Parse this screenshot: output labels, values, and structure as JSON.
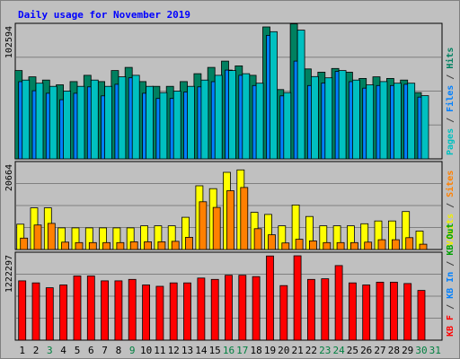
{
  "chart_data": {
    "type": "bar",
    "title": "Daily usage for November 2019",
    "categories": [
      "1",
      "2",
      "3",
      "4",
      "5",
      "6",
      "7",
      "8",
      "9",
      "10",
      "11",
      "12",
      "13",
      "14",
      "15",
      "16",
      "17",
      "18",
      "19",
      "20",
      "21",
      "22",
      "23",
      "24",
      "25",
      "26",
      "27",
      "28",
      "29",
      "30",
      "31"
    ],
    "category_colors": {
      "1": "#000000",
      "2": "#000000",
      "3": "#008040",
      "4": "#000000",
      "5": "#000000",
      "6": "#000000",
      "7": "#000000",
      "8": "#000000",
      "9": "#008040",
      "10": "#000000",
      "11": "#000000",
      "12": "#000000",
      "13": "#000000",
      "14": "#000000",
      "15": "#000000",
      "16": "#008040",
      "17": "#008040",
      "18": "#000000",
      "19": "#000000",
      "20": "#000000",
      "21": "#000000",
      "22": "#000000",
      "23": "#008040",
      "24": "#008040",
      "25": "#000000",
      "26": "#000000",
      "27": "#000000",
      "28": "#000000",
      "29": "#000000",
      "30": "#008040",
      "31": "#008040"
    },
    "panels": [
      {
        "max_label": "102594",
        "ymax": 102594,
        "legend": [
          {
            "text": "Pages",
            "color": "#00c0c0"
          },
          {
            "text": " / ",
            "color": "#404040"
          },
          {
            "text": "Files",
            "color": "#0080ff"
          },
          {
            "text": " / ",
            "color": "#404040"
          },
          {
            "text": "Hits",
            "color": "#008060"
          }
        ],
        "series": [
          {
            "name": "Hits",
            "color": "#008060",
            "values": [
              68700,
              63800,
              61300,
              57600,
              60100,
              65000,
              60100,
              68700,
              71100,
              60100,
              56400,
              56400,
              60100,
              66200,
              71100,
              76000,
              72300,
              65000,
              102600,
              53900,
              105000,
              69900,
              67400,
              70300,
              67400,
              62500,
              63800,
              62500,
              61300,
              51500,
              0
            ]
          },
          {
            "name": "Files",
            "color": "#0080ff",
            "values": [
              60000,
              53000,
              51000,
              46000,
              51000,
              56000,
              49000,
              58000,
              63000,
              51000,
              47000,
              47000,
              52000,
              56000,
              60000,
              69000,
              65000,
              57000,
              96000,
              49000,
              76000,
              57000,
              59000,
              68000,
              60000,
              55000,
              57000,
              57000,
              58000,
              48000,
              0
            ]
          },
          {
            "name": "Pages",
            "color": "#00c0c0",
            "values": [
              61300,
              58800,
              56400,
              52700,
              56400,
              61300,
              56400,
              63800,
              65000,
              56400,
              51500,
              52700,
              56400,
              61300,
              65000,
              68700,
              66200,
              58800,
              98900,
              51500,
              100100,
              64000,
              63000,
              68700,
              61300,
              57600,
              60100,
              58800,
              58800,
              49100,
              0
            ]
          }
        ]
      },
      {
        "max_label": "20664",
        "ymax": 20664,
        "legend": [
          {
            "text": "Visits",
            "color": "#f0f000"
          },
          {
            "text": " / ",
            "color": "#404040"
          },
          {
            "text": "Sites",
            "color": "#ff8000"
          }
        ],
        "series": [
          {
            "name": "Visits",
            "color": "#ffff00",
            "values": [
              6200,
              10200,
              10200,
              5300,
              5300,
              5300,
              5300,
              5300,
              5300,
              5800,
              5800,
              5800,
              7900,
              15600,
              14900,
              18900,
              19500,
              9100,
              8600,
              5800,
              10900,
              8100,
              5800,
              5800,
              5800,
              6300,
              7000,
              7000,
              9300,
              4500,
              0
            ]
          },
          {
            "name": "Sites",
            "color": "#ff8000",
            "values": [
              2800,
              6000,
              6400,
              1800,
              1700,
              1700,
              1700,
              1700,
              1900,
              1900,
              1900,
              2000,
              3000,
              11700,
              10300,
              14400,
              15200,
              5100,
              3600,
              1600,
              2500,
              2100,
              1700,
              1700,
              1700,
              1800,
              2400,
              2400,
              2900,
              1300,
              0
            ]
          }
        ]
      },
      {
        "max_label": "1222297",
        "ymax": 1222297,
        "legend": [
          {
            "text": "KB F",
            "color": "#ff0000"
          },
          {
            "text": " / ",
            "color": "#404040"
          },
          {
            "text": "KB In",
            "color": "#0080ff"
          },
          {
            "text": " / ",
            "color": "#404040"
          },
          {
            "text": "KB Out",
            "color": "#00a000"
          }
        ],
        "series": [
          {
            "name": "KB F",
            "color": "#ff0000",
            "values": [
              860000,
              830000,
              760000,
              800000,
              930000,
              930000,
              860000,
              860000,
              880000,
              800000,
              780000,
              830000,
              830000,
              900000,
              880000,
              940000,
              940000,
              920000,
              1220000,
              790000,
              1222297,
              880000,
              890000,
              1080000,
              830000,
              800000,
              840000,
              840000,
              820000,
              720000,
              0
            ]
          }
        ]
      }
    ]
  }
}
